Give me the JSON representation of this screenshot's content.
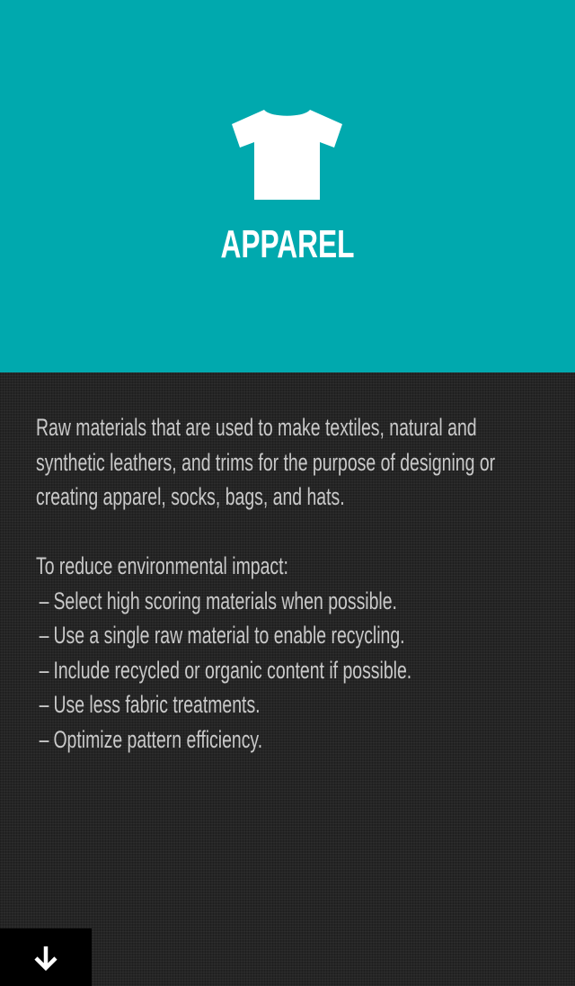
{
  "header": {
    "icon": "t-shirt-icon",
    "title": "APPAREL",
    "background_color": "#00a9ae"
  },
  "content": {
    "paragraph": "Raw materials that are used to make textiles, natural and synthetic leathers, and trims for the purpose of designing or creating apparel, socks, bags, and hats.",
    "tips_heading": "To reduce environmental impact:",
    "tips": [
      "Select high scoring materials when possible.",
      "Use a single raw material to enable recycling.",
      "Include recycled or organic content if possible.",
      "Use less fabric treatments.",
      "Optimize pattern efficiency."
    ],
    "bullet": "–"
  },
  "footer": {
    "scroll_button_icon": "arrow-down-icon"
  }
}
